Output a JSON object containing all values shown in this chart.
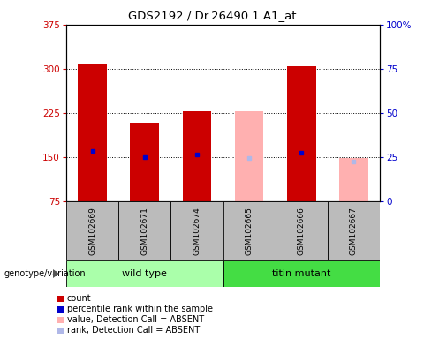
{
  "title": "GDS2192 / Dr.26490.1.A1_at",
  "samples": [
    "GSM102669",
    "GSM102671",
    "GSM102674",
    "GSM102665",
    "GSM102666",
    "GSM102667"
  ],
  "absent_mask": [
    false,
    false,
    false,
    true,
    false,
    true
  ],
  "count_present": [
    308,
    208,
    228,
    0,
    305,
    0
  ],
  "count_absent": [
    0,
    0,
    0,
    228,
    0,
    148
  ],
  "percentile_present": [
    160,
    150,
    155,
    0,
    158,
    0
  ],
  "percentile_absent": [
    0,
    0,
    0,
    148,
    0,
    143
  ],
  "ylim_left": [
    75,
    375
  ],
  "yticks_left": [
    75,
    150,
    225,
    300,
    375
  ],
  "yticks_right": [
    0,
    25,
    50,
    75,
    100
  ],
  "gridlines": [
    150,
    225,
    300
  ],
  "bar_width": 0.55,
  "count_color": "#cc0000",
  "absent_color": "#ffb0b0",
  "percentile_color": "#0000cc",
  "percentile_absent_color": "#b0b8e8",
  "wt_color": "#aaffaa",
  "mut_color": "#44dd44",
  "label_bg": "#bbbbbb",
  "legend_items": [
    [
      "#cc0000",
      "count"
    ],
    [
      "#0000cc",
      "percentile rank within the sample"
    ],
    [
      "#ffb0b0",
      "value, Detection Call = ABSENT"
    ],
    [
      "#b0b8e8",
      "rank, Detection Call = ABSENT"
    ]
  ]
}
